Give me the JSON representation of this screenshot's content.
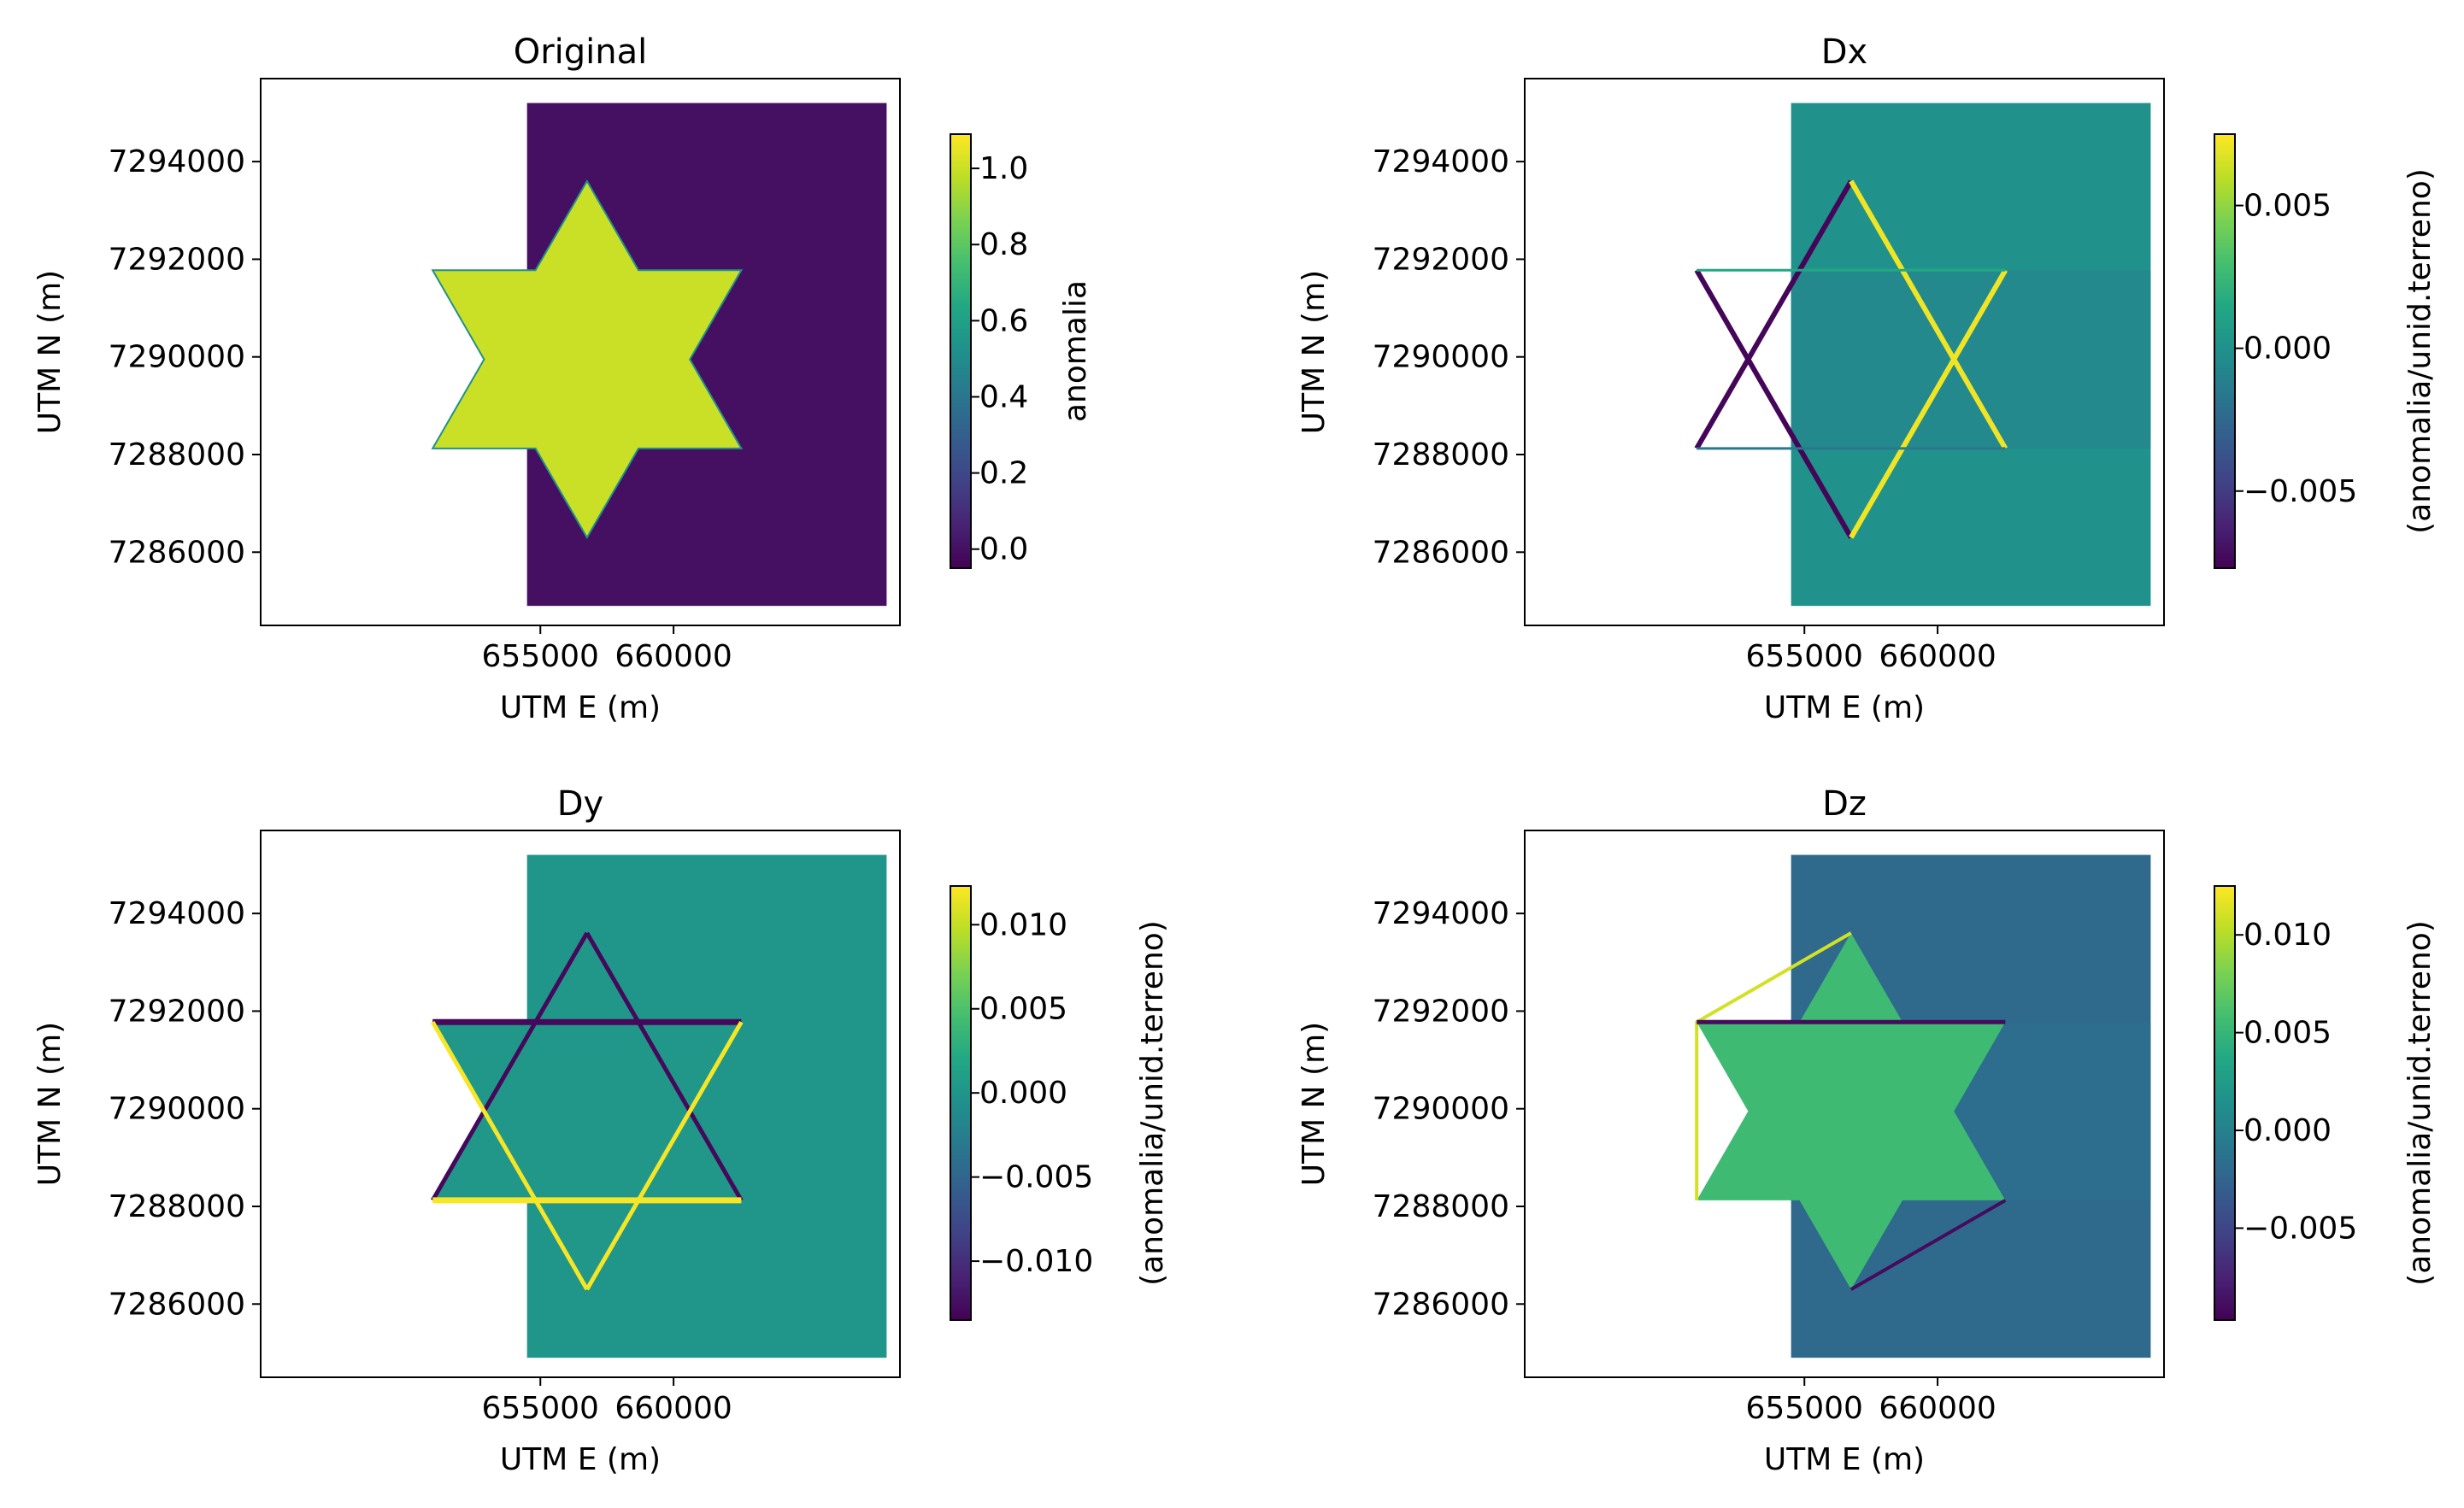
{
  "chart_data": [
    {
      "type": "heatmap",
      "title": "Original",
      "xlabel": "UTM E (m)",
      "ylabel": "UTM N (m)",
      "xlim": [
        644500,
        668500
      ],
      "ylim": [
        7284500,
        7295700
      ],
      "xticks": [
        655000,
        660000
      ],
      "xtick_labels": [
        "655000",
        "660000"
      ],
      "yticks": [
        7286000,
        7288000,
        7290000,
        7292000,
        7294000
      ],
      "ytick_labels": [
        "7286000",
        "7288000",
        "7290000",
        "7292000",
        "7294000"
      ],
      "grid": false,
      "colormap": "viridis",
      "colorbar": {
        "label": "anomalia",
        "range": [
          -0.05,
          1.09
        ],
        "ticks": [
          0.0,
          0.2,
          0.4,
          0.6,
          0.8,
          1.0
        ],
        "tick_labels": [
          "0.0",
          "0.2",
          "0.4",
          "0.6",
          "0.8",
          "1.0"
        ]
      },
      "data_extent": {
        "x": [
          654500,
          668000
        ],
        "y": [
          7284900,
          7295200
        ]
      },
      "star": {
        "center_x": 656750,
        "center_y": 7289950,
        "outer_radius_y": 3650
      },
      "values": {
        "background": 0.0,
        "star": 1.0
      }
    },
    {
      "type": "heatmap",
      "title": "Dx",
      "xlabel": "UTM E (m)",
      "ylabel": "UTM N (m)",
      "xlim": [
        644500,
        668500
      ],
      "ylim": [
        7284500,
        7295700
      ],
      "xticks": [
        655000,
        660000
      ],
      "xtick_labels": [
        "655000",
        "660000"
      ],
      "yticks": [
        7286000,
        7288000,
        7290000,
        7292000,
        7294000
      ],
      "ytick_labels": [
        "7286000",
        "7288000",
        "7290000",
        "7292000",
        "7294000"
      ],
      "grid": false,
      "colormap": "viridis",
      "colorbar": {
        "label": "(anomalia/unid.terreno)",
        "range": [
          -0.0077,
          0.0075
        ],
        "ticks": [
          -0.005,
          0.0,
          0.005
        ],
        "tick_labels": [
          "−0.005",
          "0.000",
          "0.005"
        ]
      },
      "data_extent": {
        "x": [
          654500,
          668000
        ],
        "y": [
          7284900,
          7295200
        ]
      },
      "star": {
        "center_x": 656750,
        "center_y": 7289950,
        "outer_radius_y": 3650
      },
      "values": {
        "background": 0.0,
        "left_edge": -0.0075,
        "right_edge": 0.0072
      }
    },
    {
      "type": "heatmap",
      "title": "Dy",
      "xlabel": "UTM E (m)",
      "ylabel": "UTM N (m)",
      "xlim": [
        644500,
        668500
      ],
      "ylim": [
        7284500,
        7295700
      ],
      "xticks": [
        655000,
        660000
      ],
      "xtick_labels": [
        "655000",
        "660000"
      ],
      "yticks": [
        7286000,
        7288000,
        7290000,
        7292000,
        7294000
      ],
      "ytick_labels": [
        "7286000",
        "7288000",
        "7290000",
        "7292000",
        "7294000"
      ],
      "grid": false,
      "colormap": "viridis",
      "colorbar": {
        "label": "(anomalia/unid.terreno)",
        "range": [
          -0.0135,
          0.0123
        ],
        "ticks": [
          -0.01,
          -0.005,
          0.0,
          0.005,
          0.01
        ],
        "tick_labels": [
          "−0.010",
          "−0.005",
          "0.000",
          "0.005",
          "0.010"
        ]
      },
      "data_extent": {
        "x": [
          654500,
          668000
        ],
        "y": [
          7284900,
          7295200
        ]
      },
      "star": {
        "center_x": 656750,
        "center_y": 7289950,
        "outer_radius_y": 3650
      },
      "values": {
        "background": 0.0,
        "upper_edge": -0.013,
        "lower_edge": 0.012
      }
    },
    {
      "type": "heatmap",
      "title": "Dz",
      "xlabel": "UTM E (m)",
      "ylabel": "UTM N (m)",
      "xlim": [
        644500,
        668500
      ],
      "ylim": [
        7284500,
        7295700
      ],
      "xticks": [
        655000,
        660000
      ],
      "xtick_labels": [
        "655000",
        "660000"
      ],
      "yticks": [
        7286000,
        7288000,
        7290000,
        7292000,
        7294000
      ],
      "ytick_labels": [
        "7286000",
        "7288000",
        "7290000",
        "7292000",
        "7294000"
      ],
      "grid": false,
      "colormap": "viridis",
      "colorbar": {
        "label": "(anomalia/unid.terreno)",
        "range": [
          -0.0097,
          0.0125
        ],
        "ticks": [
          -0.005,
          0.0,
          0.005,
          0.01
        ],
        "tick_labels": [
          "−0.005",
          "0.000",
          "0.005",
          "0.010"
        ]
      },
      "data_extent": {
        "x": [
          654500,
          668000
        ],
        "y": [
          7284900,
          7295200
        ]
      },
      "star": {
        "center_x": 656750,
        "center_y": 7289950,
        "outer_radius_y": 3650
      },
      "values": {
        "background": -0.002,
        "star_interior": 0.0055,
        "edge_high": 0.011,
        "edge_low": -0.009
      }
    }
  ]
}
